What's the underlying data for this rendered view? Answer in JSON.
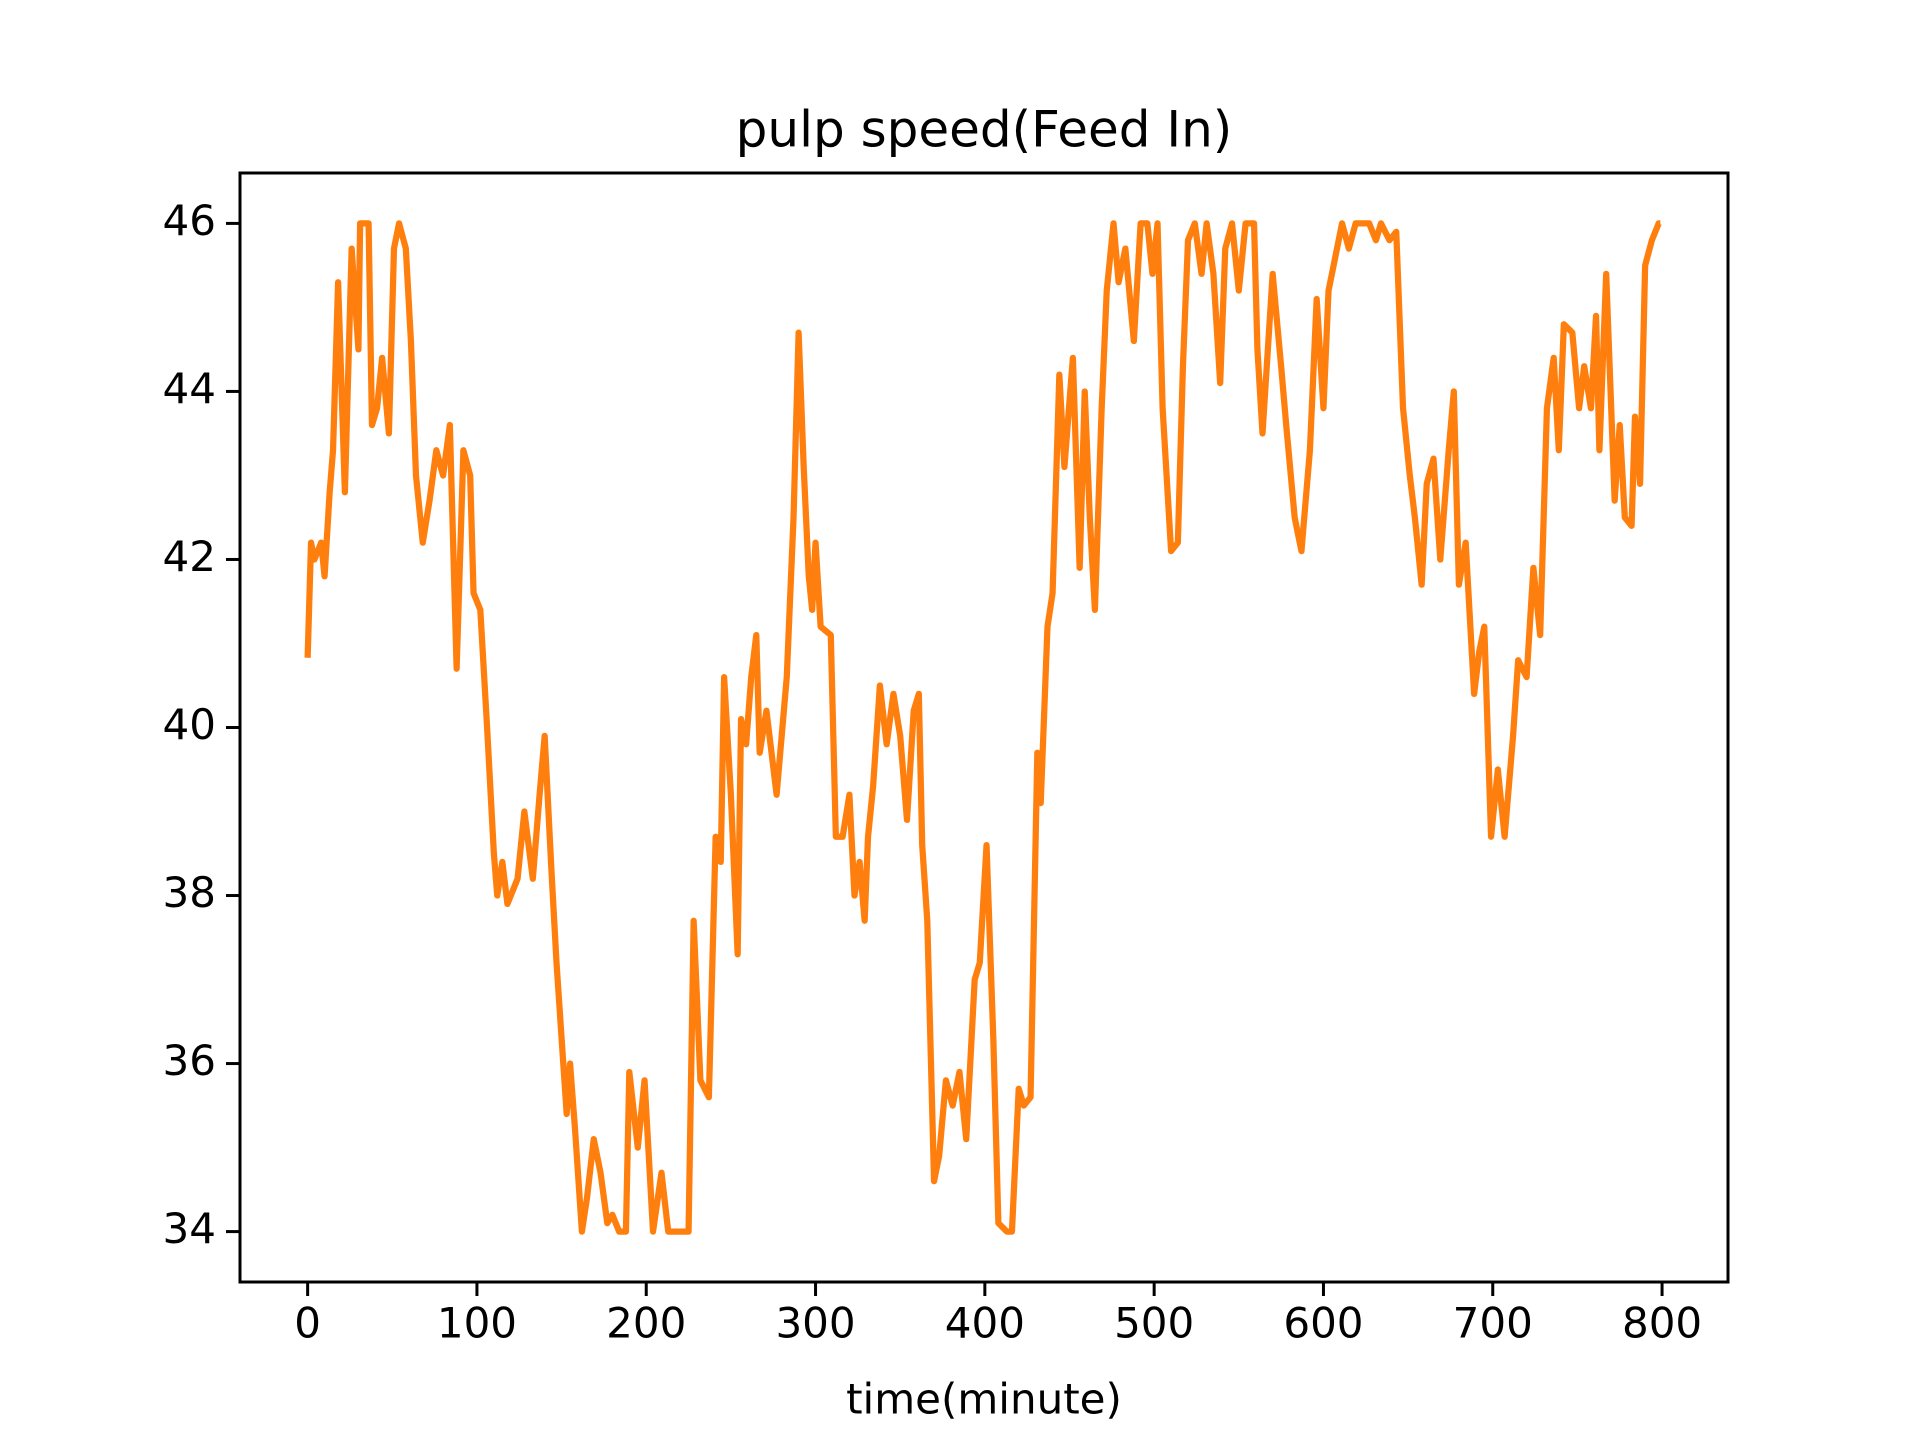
{
  "chart_data": {
    "type": "line",
    "title": "pulp speed(Feed In)",
    "x_label": "time(minute)",
    "x": [
      0,
      2,
      4,
      8,
      10,
      13,
      15,
      18,
      22,
      26,
      30,
      31,
      36,
      38,
      41,
      44,
      48,
      51,
      54,
      58,
      61,
      64,
      68,
      72,
      76,
      80,
      84,
      88,
      92,
      96,
      98,
      102,
      106,
      110,
      112,
      115,
      118,
      124,
      128,
      133,
      137,
      140,
      144,
      147,
      151,
      153,
      155,
      158,
      162,
      165,
      169,
      173,
      177,
      180,
      184,
      188,
      190,
      195,
      199,
      204,
      209,
      213,
      225,
      228,
      232,
      237,
      241,
      244,
      246,
      250,
      254,
      256,
      259,
      262,
      265,
      267,
      271,
      277,
      283,
      287,
      290,
      293,
      296,
      298,
      300,
      303,
      309,
      312,
      316,
      320,
      323,
      326,
      329,
      331,
      334,
      338,
      342,
      346,
      350,
      354,
      358,
      361,
      363,
      366,
      370,
      373,
      377,
      381,
      385,
      389,
      394,
      397,
      401,
      405,
      408,
      413,
      416,
      420,
      423,
      427,
      431,
      433,
      437,
      440,
      444,
      447,
      452,
      456,
      459,
      462,
      465,
      469,
      472,
      476,
      479,
      483,
      488,
      492,
      496,
      499,
      502,
      505,
      510,
      514,
      517,
      520,
      524,
      528,
      531,
      535,
      539,
      542,
      546,
      550,
      554,
      559,
      561,
      564,
      570,
      575,
      578,
      583,
      587,
      592,
      596,
      600,
      603,
      608,
      611,
      615,
      619,
      627,
      631,
      634,
      639,
      643,
      647,
      651,
      654,
      658,
      661,
      665,
      669,
      674,
      677,
      680,
      684,
      689,
      692,
      695,
      699,
      703,
      707,
      712,
      715,
      720,
      724,
      728,
      732,
      736,
      739,
      742,
      747,
      751,
      754,
      758,
      761,
      763,
      767,
      772,
      775,
      778,
      782,
      784,
      787,
      790,
      794,
      798,
      799
    ],
    "series": [
      {
        "color": "#ff7f0e",
        "values": [
          40.83,
          42.2,
          42.0,
          42.2,
          41.8,
          42.8,
          43.3,
          45.3,
          42.8,
          45.7,
          44.5,
          46,
          46,
          43.6,
          43.8,
          44.4,
          43.5,
          45.7,
          46,
          45.7,
          44.6,
          43,
          42.2,
          42.7,
          43.3,
          43,
          43.6,
          40.7,
          43.3,
          43,
          41.6,
          41.4,
          40,
          38.5,
          38,
          38.4,
          37.9,
          38.2,
          39,
          38.2,
          39.2,
          39.9,
          38.3,
          37.2,
          36,
          35.4,
          36,
          35.2,
          34,
          34.4,
          35.1,
          34.7,
          34.1,
          34.2,
          34,
          34,
          35.9,
          35,
          35.8,
          34,
          34.7,
          34,
          34,
          37.7,
          35.8,
          35.6,
          38.7,
          38.4,
          40.6,
          39.2,
          37.3,
          40.1,
          39.8,
          40.6,
          41.1,
          39.7,
          40.2,
          39.2,
          40.6,
          42.5,
          44.7,
          43.1,
          41.8,
          41.4,
          42.2,
          41.2,
          41.1,
          38.7,
          38.7,
          39.2,
          38,
          38.4,
          37.7,
          38.7,
          39.3,
          40.5,
          39.8,
          40.4,
          39.9,
          38.9,
          40.2,
          40.4,
          38.6,
          37.7,
          34.6,
          34.9,
          35.8,
          35.5,
          35.9,
          35.1,
          37.0,
          37.2,
          38.6,
          36.3,
          34.1,
          34,
          34,
          35.7,
          35.5,
          35.6,
          39.7,
          39.1,
          41.2,
          41.6,
          44.2,
          43.1,
          44.4,
          41.9,
          44,
          42.5,
          41.4,
          43.8,
          45.2,
          46,
          45.3,
          45.7,
          44.6,
          46,
          46,
          45.4,
          46,
          43.8,
          42.1,
          42.2,
          44.3,
          45.8,
          46,
          45.4,
          46,
          45.4,
          44.1,
          45.7,
          46,
          45.2,
          46,
          46,
          44.5,
          43.5,
          45.4,
          44.3,
          43.6,
          42.5,
          42.1,
          43.3,
          45.1,
          43.8,
          45.2,
          45.7,
          46,
          45.7,
          46,
          46,
          45.8,
          46,
          45.8,
          45.9,
          43.8,
          43,
          42.5,
          41.7,
          42.9,
          43.2,
          42,
          43.3,
          44,
          41.7,
          42.2,
          40.4,
          40.9,
          41.2,
          38.7,
          39.5,
          38.7,
          39.9,
          40.8,
          40.6,
          41.9,
          41.1,
          43.8,
          44.4,
          43.3,
          44.8,
          44.7,
          43.8,
          44.3,
          43.8,
          44.9,
          43.3,
          45.4,
          42.7,
          43.6,
          42.5,
          42.4,
          43.7,
          42.9,
          45.5,
          45.8,
          46,
          46
        ]
      }
    ],
    "xlim": [
      -39.95,
      838.95
    ],
    "xticks": [
      0,
      100,
      200,
      300,
      400,
      500,
      600,
      700,
      800
    ],
    "ylim": [
      33.4,
      46.6
    ],
    "yticks": [
      34,
      36,
      38,
      40,
      42,
      44,
      46
    ]
  }
}
